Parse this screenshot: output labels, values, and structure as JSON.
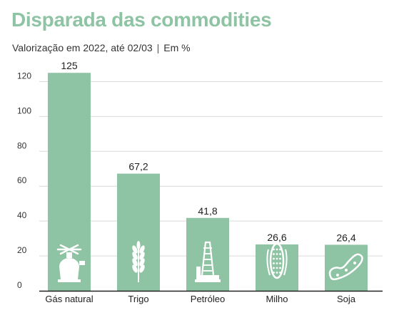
{
  "header": {
    "title": "Disparada das commodities",
    "subtitle_main": "Valorização em 2022, até 02/03",
    "subtitle_sep": "|",
    "subtitle_unit": "Em %"
  },
  "chart_data": {
    "type": "bar",
    "title": "Disparada das commodities",
    "subtitle": "Valorização em 2022, até 02/03 | Em %",
    "categories": [
      "Gás natural",
      "Trigo",
      "Petróleo",
      "Milho",
      "Soja"
    ],
    "values": [
      125,
      67.2,
      41.8,
      26.6,
      26.4
    ],
    "value_labels": [
      "125",
      "67,2",
      "41,8",
      "26,6",
      "26,4"
    ],
    "icons": [
      "gas-stove-icon",
      "wheat-icon",
      "oil-rig-icon",
      "corn-icon",
      "soybean-icon"
    ],
    "yticks": [
      0,
      20,
      40,
      60,
      80,
      100,
      120
    ],
    "ylim": [
      0,
      130
    ],
    "xlabel": "",
    "ylabel": "",
    "grid": true,
    "bar_color": "#8ec3a3",
    "icon_color": "#ffffff"
  }
}
